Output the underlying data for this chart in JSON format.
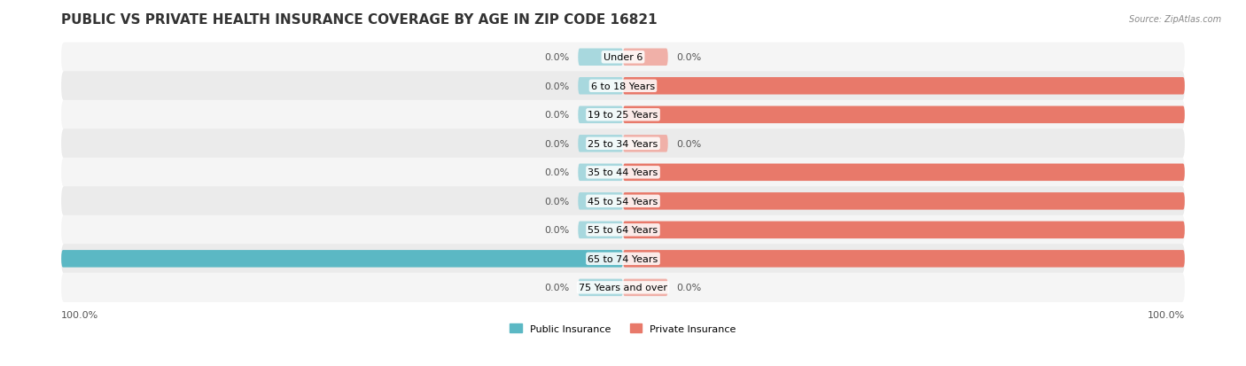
{
  "title": "PUBLIC VS PRIVATE HEALTH INSURANCE COVERAGE BY AGE IN ZIP CODE 16821",
  "source": "Source: ZipAtlas.com",
  "categories": [
    "Under 6",
    "6 to 18 Years",
    "19 to 25 Years",
    "25 to 34 Years",
    "35 to 44 Years",
    "45 to 54 Years",
    "55 to 64 Years",
    "65 to 74 Years",
    "75 Years and over"
  ],
  "public_values": [
    0.0,
    0.0,
    0.0,
    0.0,
    0.0,
    0.0,
    0.0,
    100.0,
    0.0
  ],
  "private_values": [
    0.0,
    100.0,
    100.0,
    0.0,
    100.0,
    100.0,
    100.0,
    100.0,
    0.0
  ],
  "public_color": "#5bb8c4",
  "private_color": "#e8796a",
  "public_color_light": "#a8d8de",
  "private_color_light": "#f0b0a8",
  "bg_color": "#f0f0f0",
  "bar_bg_color": "#e8e8e8",
  "title_fontsize": 11,
  "label_fontsize": 8,
  "axis_label_fontsize": 8,
  "bar_height": 0.6,
  "xlim": [
    -100,
    100
  ],
  "legend_labels": [
    "Public Insurance",
    "Private Insurance"
  ]
}
